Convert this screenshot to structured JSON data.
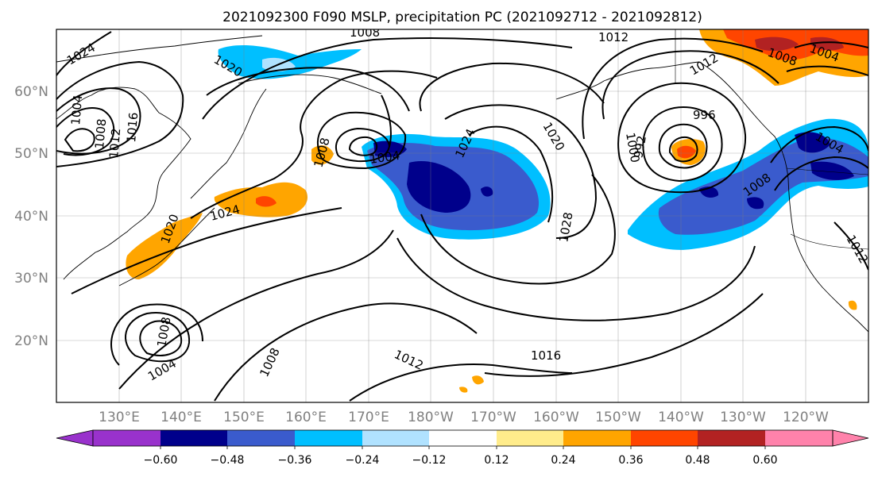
{
  "title": "2021092300 F090 MSLP, precipitation PC (2021092712 - 2021092812)",
  "lat_labels": [
    "60°N",
    "50°N",
    "40°N",
    "30°N",
    "20°N"
  ],
  "lon_labels": [
    "130°E",
    "140°E",
    "150°E",
    "160°E",
    "170°E",
    "180°W",
    "170°W",
    "160°W",
    "150°W",
    "140°W",
    "130°W",
    "120°W"
  ],
  "colorbar": {
    "tick_labels": [
      "−0.60",
      "−0.48",
      "−0.36",
      "−0.24",
      "−0.12",
      "0.12",
      "0.24",
      "0.36",
      "0.48",
      "0.60"
    ],
    "colors": [
      "#9932CC",
      "#00008B",
      "#3A5BCD",
      "#00BFFF",
      "#B0E2FF",
      "#FFFFFF",
      "#FFEC8B",
      "#FFA500",
      "#FF4500",
      "#B22222",
      "#FF82AB"
    ]
  },
  "isobar_labels": [
    "1008",
    "1024",
    "1020",
    "1004",
    "1008",
    "1012",
    "1016",
    "1008",
    "1004",
    "1024",
    "1020",
    "1024",
    "1020",
    "1028",
    "1012",
    "1012",
    "996",
    "992",
    "1000",
    "1004",
    "1008",
    "1008",
    "1004",
    "1012",
    "1008",
    "1012",
    "1016",
    "1008",
    "1004"
  ]
}
